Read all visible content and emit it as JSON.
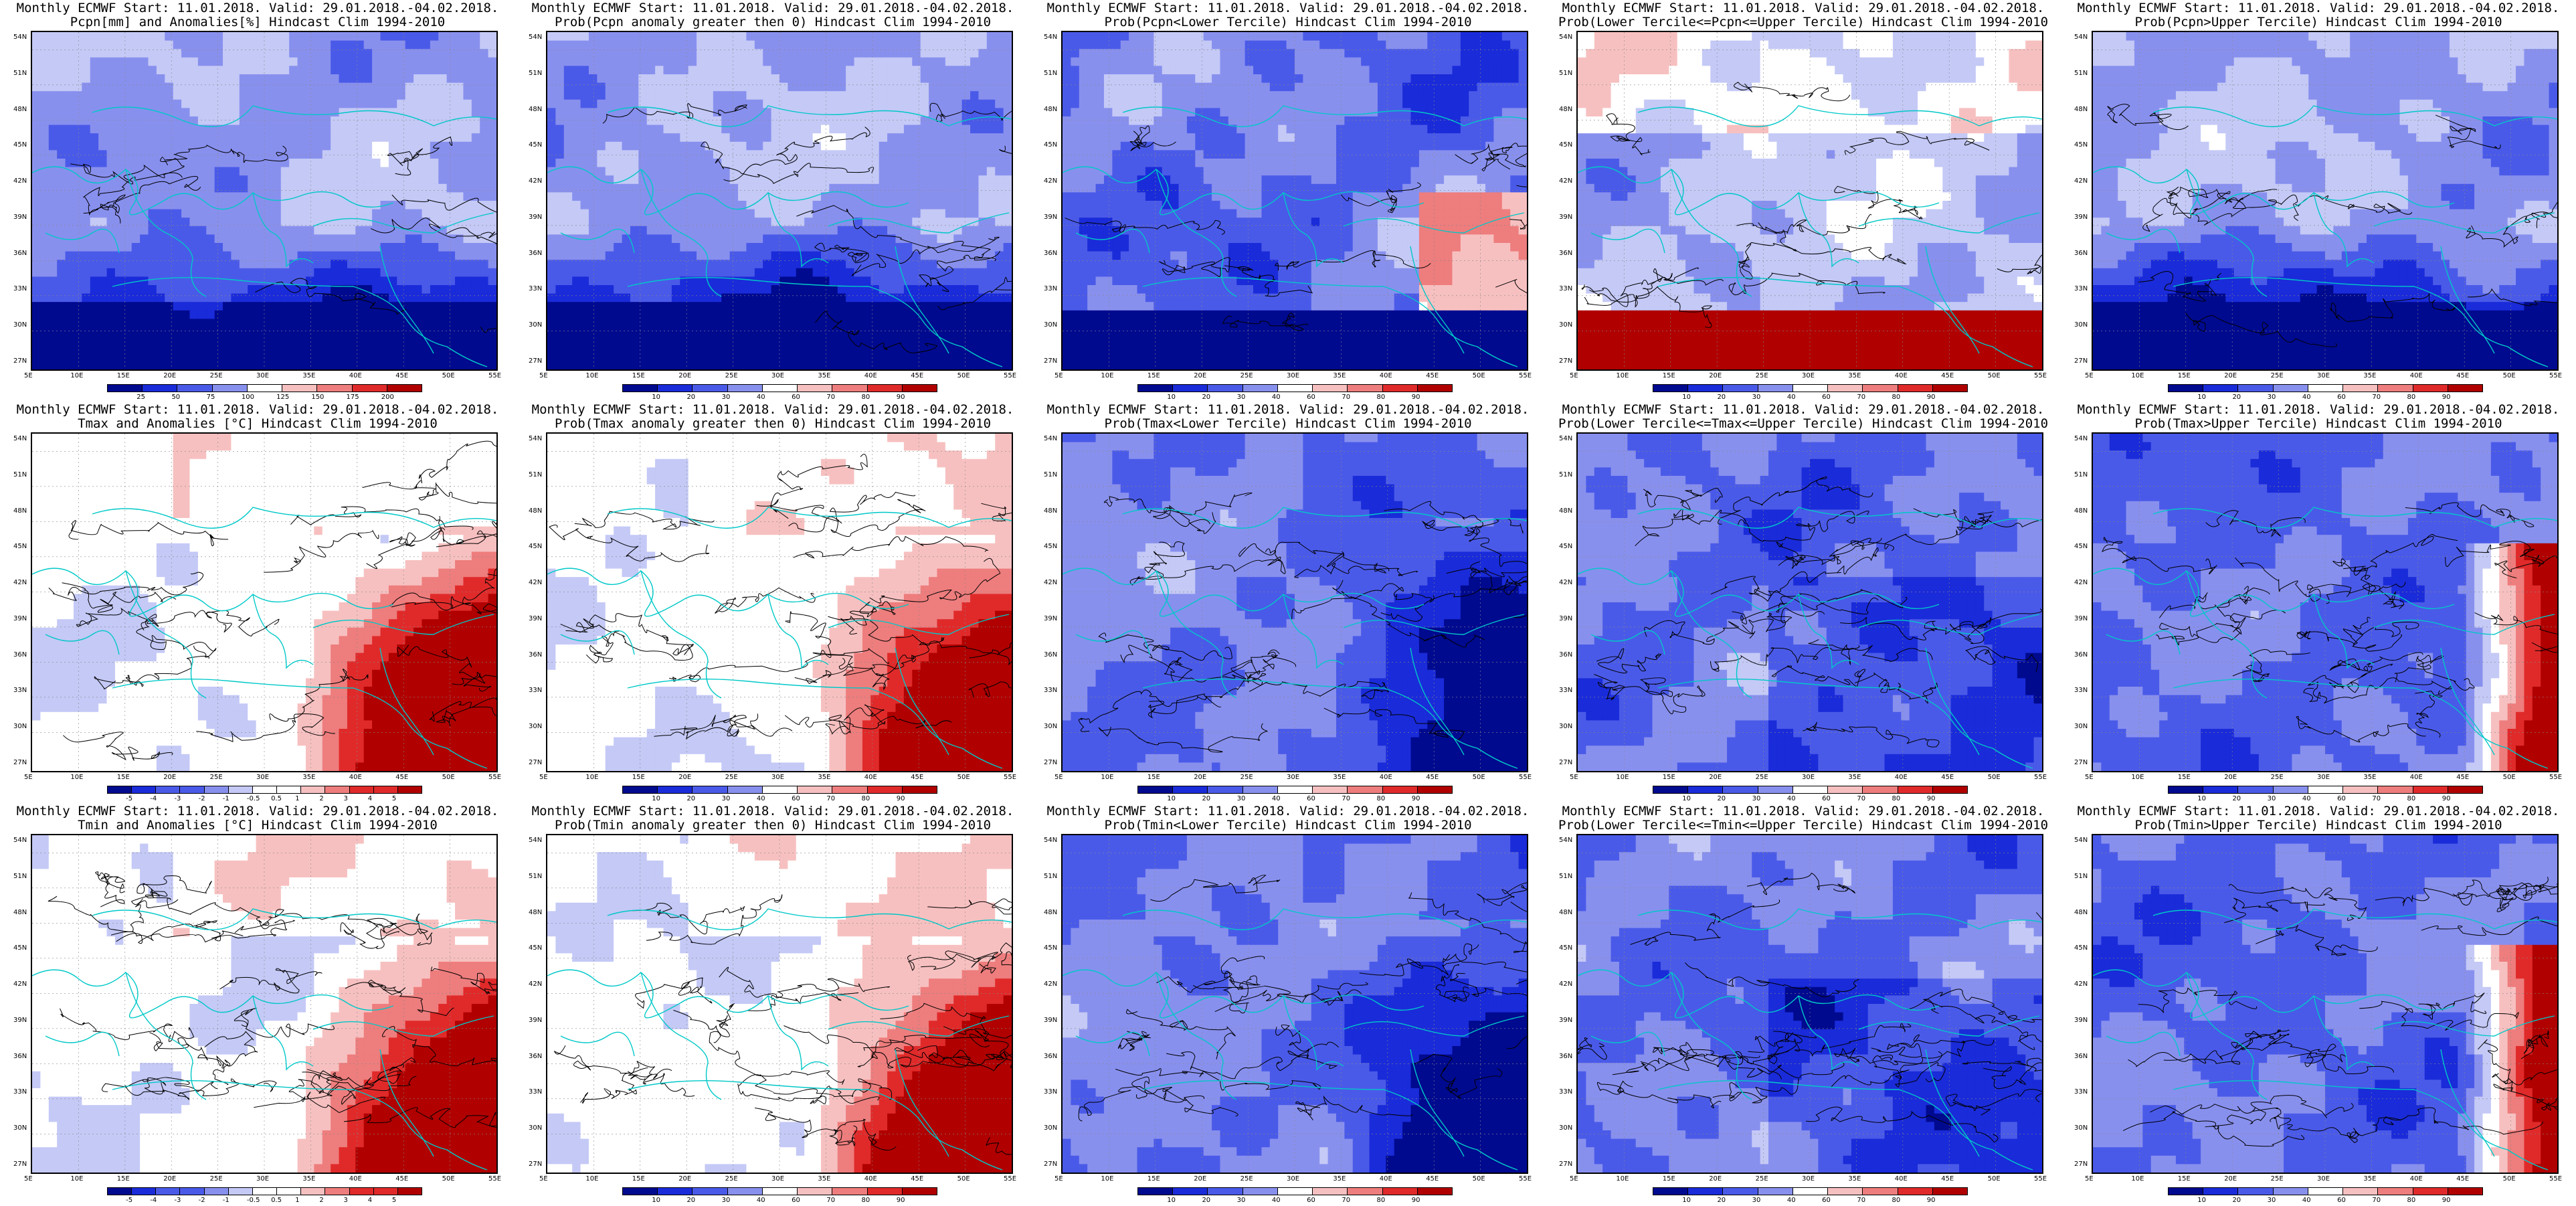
{
  "lat_labels": [
    "54N",
    "51N",
    "48N",
    "45N",
    "42N",
    "39N",
    "36N",
    "33N",
    "30N",
    "27N"
  ],
  "lon_labels": [
    "5E",
    "10E",
    "15E",
    "20E",
    "25E",
    "30E",
    "35E",
    "40E",
    "45E",
    "50E",
    "55E"
  ],
  "colors": {
    "prob": [
      "#000a8f",
      "#1a2bd9",
      "#4a5ae8",
      "#8890ee",
      "#c4c9f6",
      "#ffffff",
      "#f7c0c0",
      "#ee7d7d",
      "#e02a2a",
      "#b00000"
    ],
    "pcpn": [
      "#000a8f",
      "#1a2bd9",
      "#4a5ae8",
      "#8890ee",
      "#c4c9f6",
      "#ffffff",
      "#f7c0c0",
      "#ee7d7d",
      "#e02a2a",
      "#b00000"
    ],
    "temp": [
      "#000a8f",
      "#1a2bd9",
      "#4a5ae8",
      "#8890ee",
      "#c4c9f6",
      "#ffffff",
      "#f7c0c0",
      "#ee7d7d",
      "#e02a2a",
      "#b00000"
    ],
    "coast": "#00c8c8",
    "contour": "#000000"
  },
  "legends": {
    "pcpn": [
      "25",
      "50",
      "75",
      "100",
      "125",
      "150",
      "175",
      "200"
    ],
    "prob": [
      "10",
      "20",
      "30",
      "40",
      "60",
      "70",
      "80",
      "90"
    ],
    "temp": [
      "-5",
      "-4",
      "-3",
      "-2",
      "-1",
      "-0.5",
      "0.5",
      "1",
      "2",
      "3",
      "4",
      "5"
    ]
  },
  "panels": [
    {
      "line1": "Monthly ECMWF Start: 11.01.2018. Valid: 29.01.2018.-04.02.2018.",
      "line2": "Pcpn[mm] and Anomalies[%] Hindcast Clim 1994-2010",
      "legend": "pcpn",
      "pattern": "wet_south"
    },
    {
      "line1": "Monthly ECMWF Start: 11.01.2018. Valid: 29.01.2018.-04.02.2018.",
      "line2": "Prob(Pcpn anomaly greater then 0) Hindcast Clim 1994-2010",
      "legend": "prob",
      "pattern": "wet_south"
    },
    {
      "line1": "Monthly ECMWF Start: 11.01.2018. Valid: 29.01.2018.-04.02.2018.",
      "line2": "Prob(Pcpn<Lower Tercile) Hindcast Clim 1994-2010",
      "legend": "prob",
      "pattern": "lower_pcpn"
    },
    {
      "line1": "Monthly ECMWF Start: 11.01.2018. Valid: 29.01.2018.-04.02.2018.",
      "line2": "Prob(Lower Tercile<=Pcpn<=Upper Tercile) Hindcast Clim 1994-2010",
      "legend": "prob",
      "pattern": "middle_pcpn"
    },
    {
      "line1": "Monthly ECMWF Start: 11.01.2018. Valid: 29.01.2018.-04.02.2018.",
      "line2": "Prob(Pcpn>Upper Tercile) Hindcast Clim 1994-2010",
      "legend": "prob",
      "pattern": "wet_south"
    },
    {
      "line1": "Monthly ECMWF Start: 11.01.2018. Valid: 29.01.2018.-04.02.2018.",
      "line2": "Tmax and Anomalies [°C] Hindcast Clim 1994-2010",
      "legend": "temp",
      "pattern": "warm_east"
    },
    {
      "line1": "Monthly ECMWF Start: 11.01.2018. Valid: 29.01.2018.-04.02.2018.",
      "line2": "Prob(Tmax anomaly greater then 0) Hindcast Clim 1994-2010",
      "legend": "prob",
      "pattern": "warm_east"
    },
    {
      "line1": "Monthly ECMWF Start: 11.01.2018. Valid: 29.01.2018.-04.02.2018.",
      "line2": "Prob(Tmax<Lower Tercile) Hindcast Clim 1994-2010",
      "legend": "prob",
      "pattern": "cold_east"
    },
    {
      "line1": "Monthly ECMWF Start: 11.01.2018. Valid: 29.01.2018.-04.02.2018.",
      "line2": "Prob(Lower Tercile<=Tmax<=Upper Tercile) Hindcast Clim 1994-2010",
      "legend": "prob",
      "pattern": "blue_mix"
    },
    {
      "line1": "Monthly ECMWF Start: 11.01.2018. Valid: 29.01.2018.-04.02.2018.",
      "line2": "Prob(Tmax>Upper Tercile) Hindcast Clim 1994-2010",
      "legend": "prob",
      "pattern": "warm_east_blue"
    },
    {
      "line1": "Monthly ECMWF Start: 11.01.2018. Valid: 29.01.2018.-04.02.2018.",
      "line2": "Tmin and Anomalies [°C] Hindcast Clim 1994-2010",
      "legend": "temp",
      "pattern": "warm_east"
    },
    {
      "line1": "Monthly ECMWF Start: 11.01.2018. Valid: 29.01.2018.-04.02.2018.",
      "line2": "Prob(Tmin anomaly greater then 0) Hindcast Clim 1994-2010",
      "legend": "prob",
      "pattern": "warm_east"
    },
    {
      "line1": "Monthly ECMWF Start: 11.01.2018. Valid: 29.01.2018.-04.02.2018.",
      "line2": "Prob(Tmin<Lower Tercile) Hindcast Clim 1994-2010",
      "legend": "prob",
      "pattern": "cold_east"
    },
    {
      "line1": "Monthly ECMWF Start: 11.01.2018. Valid: 29.01.2018.-04.02.2018.",
      "line2": "Prob(Lower Tercile<=Tmin<=Upper Tercile) Hindcast Clim 1994-2010",
      "legend": "prob",
      "pattern": "blue_mix"
    },
    {
      "line1": "Monthly ECMWF Start: 11.01.2018. Valid: 29.01.2018.-04.02.2018.",
      "line2": "Prob(Tmin>Upper Tercile) Hindcast Clim 1994-2010",
      "legend": "prob",
      "pattern": "warm_east_blue"
    }
  ]
}
